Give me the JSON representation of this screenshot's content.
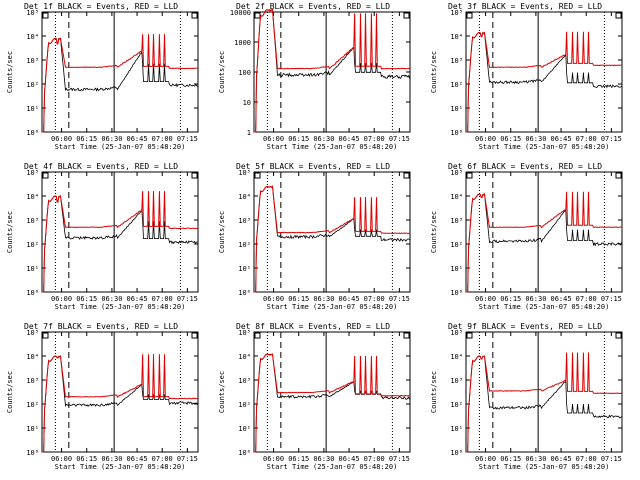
{
  "chart_data": [
    {
      "type": "line",
      "title": "Det 1f BLACK = Events, RED = LLD",
      "xlabel": "Start Time (25-Jan-07 05:48:20)",
      "ylabel": "Counts/sec",
      "yscale": "log",
      "ylim": [
        1,
        100000
      ],
      "yticks": [
        "10⁰",
        "10¹",
        "10²",
        "10³",
        "10⁴",
        "10⁵"
      ],
      "xticks": [
        "06:00",
        "06:15",
        "06:30",
        "06:45",
        "07:00",
        "07:15"
      ],
      "series": [
        {
          "name": "Events",
          "color": "#000000"
        },
        {
          "name": "LLD",
          "color": "#e00000"
        }
      ],
      "profile": {
        "peak": 8000,
        "base_red": 500,
        "base_black": 60,
        "post_black": 90,
        "post_red": 450,
        "ramp_to": 2500,
        "spike_to": 12000,
        "spike_black": 700,
        "shoulder": 5000
      }
    },
    {
      "type": "line",
      "title": "Det 2f BLACK = Events, RED = LLD",
      "xlabel": "Start Time (25-Jan-07 05:48:20)",
      "ylabel": "Counts/sec",
      "yscale": "log",
      "ylim": [
        1,
        10000
      ],
      "yticks": [
        "1",
        "10",
        "100",
        "1000",
        "10000"
      ],
      "xticks": [
        "06:00",
        "06:15",
        "06:30",
        "06:45",
        "07:00",
        "07:15"
      ],
      "series": [
        {
          "name": "Events",
          "color": "#000000"
        },
        {
          "name": "LLD",
          "color": "#e00000"
        }
      ],
      "profile": {
        "peak": 12000,
        "base_red": 130,
        "base_black": 80,
        "post_black": 70,
        "post_red": 130,
        "ramp_to": 700,
        "spike_to": 9000,
        "spike_black": 200,
        "shoulder": 12000
      }
    },
    {
      "type": "line",
      "title": "Det 3f BLACK = Events, RED = LLD",
      "xlabel": "Start Time (25-Jan-07 05:48:20)",
      "ylabel": "Counts/sec",
      "yscale": "log",
      "ylim": [
        1,
        100000
      ],
      "yticks": [
        "10⁰",
        "10¹",
        "10²",
        "10³",
        "10⁴",
        "10⁵"
      ],
      "xticks": [
        "06:00",
        "06:15",
        "06:30",
        "06:45",
        "07:00",
        "07:15"
      ],
      "series": [
        {
          "name": "Events",
          "color": "#000000"
        },
        {
          "name": "LLD",
          "color": "#e00000"
        }
      ],
      "profile": {
        "peak": 14000,
        "base_red": 500,
        "base_black": 120,
        "post_black": 80,
        "post_red": 600,
        "ramp_to": 1800,
        "spike_to": 15000,
        "spike_black": 300,
        "shoulder": 10000
      }
    },
    {
      "type": "line",
      "title": "Det 4f BLACK = Events, RED = LLD",
      "xlabel": "Start Time (25-Jan-07 05:48:20)",
      "ylabel": "Counts/sec",
      "yscale": "log",
      "ylim": [
        1,
        100000
      ],
      "yticks": [
        "10⁰",
        "10¹",
        "10²",
        "10³",
        "10⁴",
        "10⁵"
      ],
      "xticks": [
        "06:00",
        "06:15",
        "06:30",
        "06:45",
        "07:00",
        "07:15"
      ],
      "series": [
        {
          "name": "Events",
          "color": "#000000"
        },
        {
          "name": "LLD",
          "color": "#e00000"
        }
      ],
      "profile": {
        "peak": 10000,
        "base_red": 500,
        "base_black": 180,
        "post_black": 120,
        "post_red": 450,
        "ramp_to": 2800,
        "spike_to": 16000,
        "spike_black": 900,
        "shoulder": 6000
      }
    },
    {
      "type": "line",
      "title": "Det 5f BLACK = Events, RED = LLD",
      "xlabel": "Start Time (25-Jan-07 05:48:20)",
      "ylabel": "Counts/sec",
      "yscale": "log",
      "ylim": [
        1,
        100000
      ],
      "yticks": [
        "10⁰",
        "10¹",
        "10²",
        "10³",
        "10⁴",
        "10⁵"
      ],
      "xticks": [
        "06:00",
        "06:15",
        "06:30",
        "06:45",
        "07:00",
        "07:15"
      ],
      "series": [
        {
          "name": "Events",
          "color": "#000000"
        },
        {
          "name": "LLD",
          "color": "#e00000"
        }
      ],
      "profile": {
        "peak": 25000,
        "base_red": 300,
        "base_black": 200,
        "post_black": 150,
        "post_red": 280,
        "ramp_to": 1200,
        "spike_to": 9000,
        "spike_black": 400,
        "shoulder": 25000
      }
    },
    {
      "type": "line",
      "title": "Det 6f BLACK = Events, RED = LLD",
      "xlabel": "Start Time (25-Jan-07 05:48:20)",
      "ylabel": "Counts/sec",
      "yscale": "log",
      "ylim": [
        1,
        100000
      ],
      "yticks": [
        "10⁰",
        "10¹",
        "10²",
        "10³",
        "10⁴",
        "10⁵"
      ],
      "xticks": [
        "06:00",
        "06:15",
        "06:30",
        "06:45",
        "07:00",
        "07:15"
      ],
      "series": [
        {
          "name": "Events",
          "color": "#000000"
        },
        {
          "name": "LLD",
          "color": "#e00000"
        }
      ],
      "profile": {
        "peak": 12000,
        "base_red": 500,
        "base_black": 130,
        "post_black": 100,
        "post_red": 500,
        "ramp_to": 3000,
        "spike_to": 15000,
        "spike_black": 400,
        "shoulder": 9000
      }
    },
    {
      "type": "line",
      "title": "Det 7f BLACK = Events, RED = LLD",
      "xlabel": "Start Time (25-Jan-07 05:48:20)",
      "ylabel": "Counts/sec",
      "yscale": "log",
      "ylim": [
        1,
        100000
      ],
      "yticks": [
        "10⁰",
        "10¹",
        "10²",
        "10³",
        "10⁴",
        "10⁵"
      ],
      "xticks": [
        "06:00",
        "06:15",
        "06:30",
        "06:45",
        "07:00",
        "07:15"
      ],
      "series": [
        {
          "name": "Events",
          "color": "#000000"
        },
        {
          "name": "LLD",
          "color": "#e00000"
        }
      ],
      "profile": {
        "peak": 10000,
        "base_red": 200,
        "base_black": 90,
        "post_black": 110,
        "post_red": 170,
        "ramp_to": 700,
        "spike_to": 12000,
        "spike_black": 250,
        "shoulder": 9000
      }
    },
    {
      "type": "line",
      "title": "Det 8f BLACK = Events, RED = LLD",
      "xlabel": "Start Time (25-Jan-07 05:48:20)",
      "ylabel": "Counts/sec",
      "yscale": "log",
      "ylim": [
        1,
        100000
      ],
      "yticks": [
        "10⁰",
        "10¹",
        "10²",
        "10³",
        "10⁴",
        "10⁵"
      ],
      "xticks": [
        "06:00",
        "06:15",
        "06:30",
        "06:45",
        "07:00",
        "07:15"
      ],
      "series": [
        {
          "name": "Events",
          "color": "#000000"
        },
        {
          "name": "LLD",
          "color": "#e00000"
        }
      ],
      "profile": {
        "peak": 12000,
        "base_red": 300,
        "base_black": 200,
        "post_black": 180,
        "post_red": 220,
        "ramp_to": 900,
        "spike_to": 10000,
        "spike_black": 350,
        "shoulder": 12000
      }
    },
    {
      "type": "line",
      "title": "Det 9f BLACK = Events, RED = LLD",
      "xlabel": "Start Time (25-Jan-07 05:48:20)",
      "ylabel": "Counts/sec",
      "yscale": "log",
      "ylim": [
        1,
        100000
      ],
      "yticks": [
        "10⁰",
        "10¹",
        "10²",
        "10³",
        "10⁴",
        "10⁵"
      ],
      "xticks": [
        "06:00",
        "06:15",
        "06:30",
        "06:45",
        "07:00",
        "07:15"
      ],
      "series": [
        {
          "name": "Events",
          "color": "#000000"
        },
        {
          "name": "LLD",
          "color": "#e00000"
        }
      ],
      "profile": {
        "peak": 10000,
        "base_red": 350,
        "base_black": 70,
        "post_black": 30,
        "post_red": 280,
        "ramp_to": 1000,
        "spike_to": 14000,
        "spike_black": 100,
        "shoulder": 8000
      }
    }
  ]
}
